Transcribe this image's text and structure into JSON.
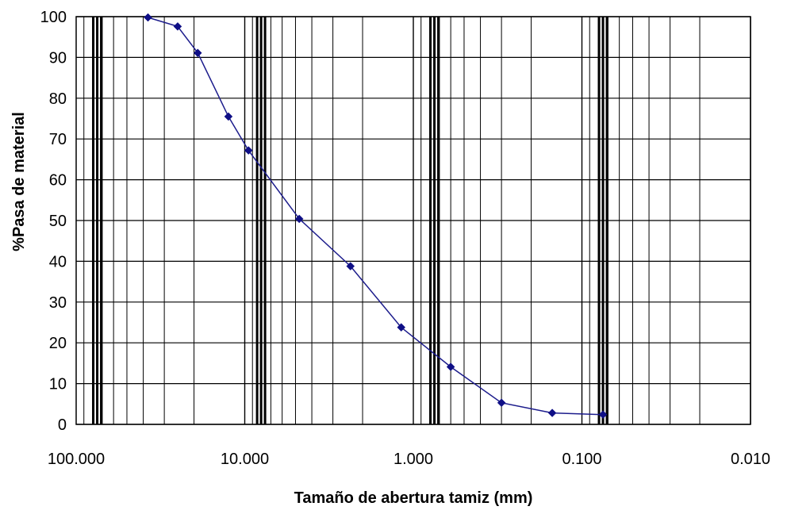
{
  "chart_data": {
    "type": "line",
    "title": "",
    "xlabel": "Tamaño de abertura tamiz (mm)",
    "ylabel": "%Pasa de material",
    "x_scale": "log",
    "x_reversed": true,
    "xlim": [
      100,
      0.01
    ],
    "ylim": [
      0,
      100
    ],
    "x_ticks": [
      100,
      10,
      1,
      0.1,
      0.01
    ],
    "x_tick_labels": [
      "100.000",
      "10.000",
      "1.000",
      "0.100",
      "0.010"
    ],
    "y_ticks": [
      0,
      10,
      20,
      30,
      40,
      50,
      60,
      70,
      80,
      90,
      100
    ],
    "y_tick_labels": [
      "0",
      "10",
      "20",
      "30",
      "40",
      "50",
      "60",
      "70",
      "80",
      "90",
      "100"
    ],
    "grid": true,
    "legend": "none",
    "emphasized_vertical_lines_mm": [
      75,
      8,
      0.75,
      0.075
    ],
    "series": [
      {
        "color": "#1c1c8c",
        "marker": "diamond",
        "x": [
          37.5,
          25.0,
          19.0,
          12.5,
          9.5,
          4.75,
          2.36,
          1.18,
          0.6,
          0.3,
          0.15,
          0.075
        ],
        "y": [
          99.8,
          97.6,
          91.1,
          75.5,
          67.2,
          50.4,
          38.8,
          23.8,
          14.1,
          5.3,
          2.8,
          2.4
        ]
      }
    ]
  }
}
